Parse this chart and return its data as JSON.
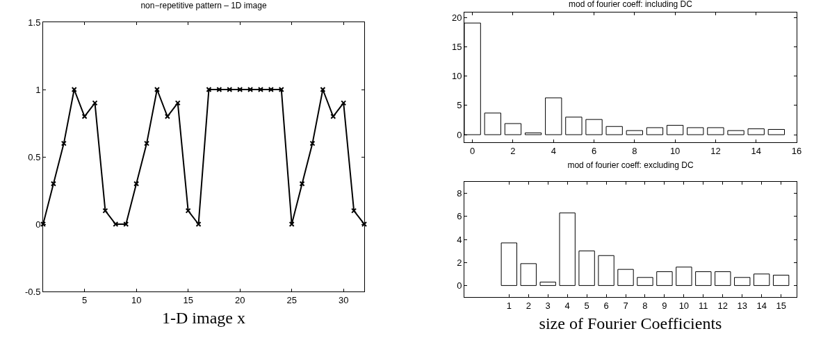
{
  "chart_data": [
    {
      "type": "line",
      "title": "non−repetitive pattern – 1D image",
      "xlabel": "1-D image x",
      "x": [
        1,
        2,
        3,
        4,
        5,
        6,
        7,
        8,
        9,
        10,
        11,
        12,
        13,
        14,
        15,
        16,
        17,
        18,
        19,
        20,
        21,
        22,
        23,
        24,
        25,
        26,
        27,
        28,
        29,
        30,
        31,
        32
      ],
      "series": [
        {
          "color": "#000000",
          "values": [
            0,
            0.3,
            0.6,
            1,
            0.8,
            0.9,
            0.1,
            0,
            0,
            0.3,
            0.6,
            1,
            0.8,
            0.9,
            0.1,
            0,
            1,
            1,
            1,
            1,
            1,
            1,
            1,
            1,
            0,
            0.3,
            0.6,
            1,
            0.8,
            0.9,
            0.1,
            0
          ]
        }
      ],
      "xlim": [
        1,
        32
      ],
      "xticks": [
        5,
        10,
        15,
        20,
        25,
        30
      ],
      "ylim": [
        -0.5,
        1.5
      ],
      "yticks": [
        -0.5,
        0,
        0.5,
        1,
        1.5
      ],
      "grid": false,
      "marker": "cross",
      "line_style": "solid"
    },
    {
      "type": "bar",
      "title": "mod of fourier coeff: including DC",
      "x": [
        0,
        1,
        2,
        3,
        4,
        5,
        6,
        7,
        8,
        9,
        10,
        11,
        12,
        13,
        14,
        15
      ],
      "series": [
        {
          "color": "#ffffff",
          "values": [
            19.1,
            3.7,
            1.9,
            0.3,
            6.3,
            3,
            2.6,
            1.4,
            0.7,
            1.2,
            1.6,
            1.2,
            1.2,
            0.7,
            1,
            0.9
          ]
        }
      ],
      "xlim": [
        -0.4,
        16
      ],
      "xticks": [
        0,
        2,
        4,
        6,
        8,
        10,
        12,
        14,
        16
      ],
      "ylim": [
        -1.3,
        20.9
      ],
      "yticks": [
        0,
        5,
        10,
        15,
        20
      ],
      "grid": false
    },
    {
      "type": "bar",
      "title": "mod of fourier coeff: excluding DC",
      "xlabel": "size of Fourier Coefficients",
      "x": [
        1,
        2,
        3,
        4,
        5,
        6,
        7,
        8,
        9,
        10,
        11,
        12,
        13,
        14,
        15
      ],
      "series": [
        {
          "color": "#ffffff",
          "values": [
            3.7,
            1.9,
            0.3,
            6.3,
            3,
            2.6,
            1.4,
            0.7,
            1.2,
            1.6,
            1.2,
            1.2,
            0.7,
            1,
            0.9
          ]
        }
      ],
      "xlim": [
        -1.3,
        15.8
      ],
      "xticks": [
        1,
        2,
        3,
        4,
        5,
        6,
        7,
        8,
        9,
        10,
        11,
        12,
        13,
        14,
        15
      ],
      "ylim": [
        -1,
        9
      ],
      "yticks": [
        0,
        2,
        4,
        6,
        8
      ],
      "grid": false
    }
  ]
}
